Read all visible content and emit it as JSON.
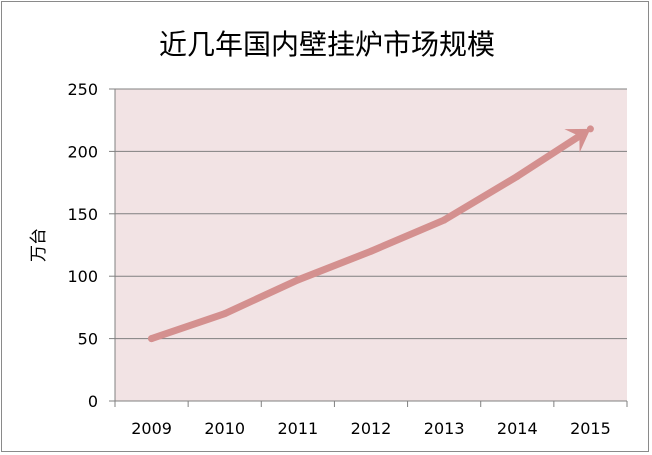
{
  "chart_data": {
    "type": "line",
    "title": "近几年国内壁挂炉市场规模",
    "xlabel": "",
    "ylabel": "万台",
    "x": [
      "2009",
      "2010",
      "2011",
      "2012",
      "2013",
      "2014",
      "2015"
    ],
    "series": [
      {
        "values": [
          50,
          70,
          97,
          120,
          145,
          180,
          218
        ]
      }
    ],
    "ylim": [
      0,
      250
    ],
    "yticks": [
      0,
      50,
      100,
      150,
      200,
      250
    ],
    "grid": true,
    "legend": "none",
    "arrow_at_end": true,
    "colors": {
      "plot_background": "#f2e3e4",
      "line": "#d4908f",
      "grid": "#808080",
      "axis": "#808080"
    }
  }
}
